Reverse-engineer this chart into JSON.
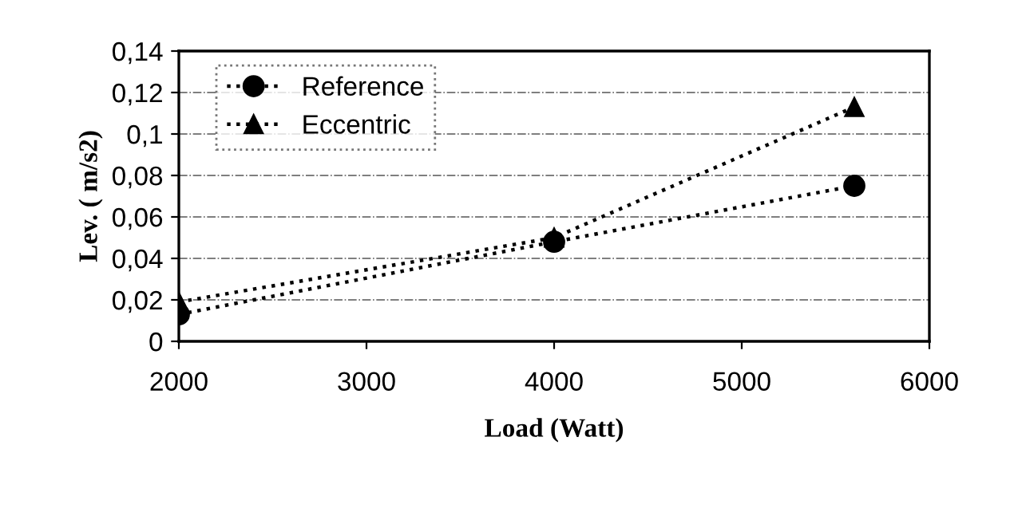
{
  "chart_data": {
    "type": "line",
    "xlabel": "Load (Watt)",
    "ylabel": "Lev. ( m/s2)",
    "x": [
      2000,
      4000,
      5600
    ],
    "series": [
      {
        "name": "Reference",
        "color": "#000000",
        "marker": "circle",
        "values": [
          0.013,
          0.048,
          0.075
        ]
      },
      {
        "name": "Eccentric",
        "color": "#000000",
        "marker": "triangle",
        "values": [
          0.019,
          0.05,
          0.113
        ]
      }
    ],
    "line_style": "dotted",
    "xlim": [
      2000,
      6000
    ],
    "xticks": [
      2000,
      3000,
      4000,
      5000,
      6000
    ],
    "ylim": [
      0,
      0.14
    ],
    "yticks": [
      {
        "value": 0,
        "label": "0"
      },
      {
        "value": 0.02,
        "label": "0,02"
      },
      {
        "value": 0.04,
        "label": "0,04"
      },
      {
        "value": 0.06,
        "label": "0,06"
      },
      {
        "value": 0.08,
        "label": "0,08"
      },
      {
        "value": 0.1,
        "label": "0,1"
      },
      {
        "value": 0.12,
        "label": "0,12"
      },
      {
        "value": 0.14,
        "label": "0,14"
      }
    ],
    "grid": "y",
    "legend": "top left"
  }
}
